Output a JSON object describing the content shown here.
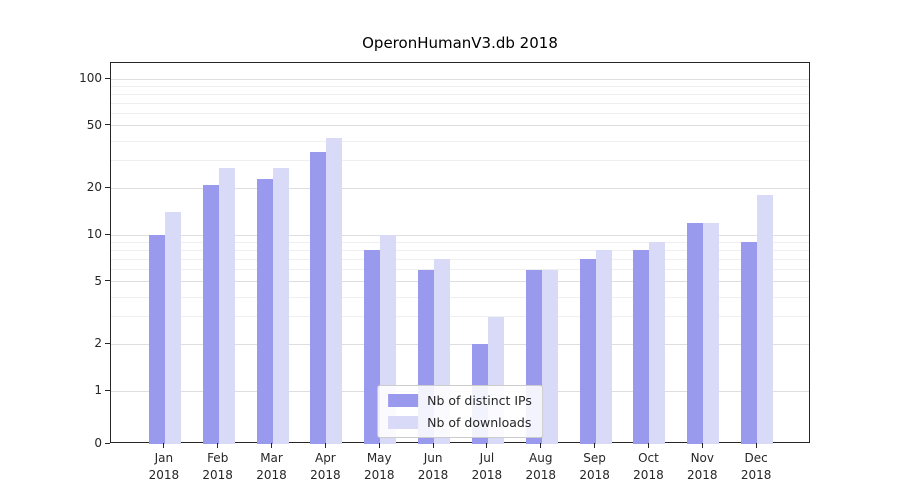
{
  "title": "OperonHumanV3.db 2018",
  "chart_data": {
    "type": "bar",
    "title": "OperonHumanV3.db 2018",
    "xlabel": "",
    "ylabel": "",
    "y_scale": "symlog",
    "ylim": [
      0,
      126
    ],
    "grid": true,
    "legend_position": "lower center",
    "categories": [
      "Jan 2018",
      "Feb 2018",
      "Mar 2018",
      "Apr 2018",
      "May 2018",
      "Jun 2018",
      "Jul 2018",
      "Aug 2018",
      "Sep 2018",
      "Oct 2018",
      "Nov 2018",
      "Dec 2018"
    ],
    "y_ticks": [
      0,
      1,
      2,
      5,
      10,
      20,
      50,
      100
    ],
    "y_minor_ticks": [
      3,
      4,
      6,
      7,
      8,
      9,
      30,
      40,
      60,
      70,
      80,
      90
    ],
    "series": [
      {
        "name": "Nb of distinct IPs",
        "color": "#9999ee",
        "values": [
          10,
          21,
          23,
          34,
          8,
          6,
          2,
          6,
          7,
          8,
          12,
          9
        ]
      },
      {
        "name": "Nb of downloads",
        "color": "#d9d9f8",
        "values": [
          14,
          27,
          27,
          42,
          10,
          7,
          3,
          6,
          8,
          9,
          12,
          18
        ]
      }
    ]
  }
}
